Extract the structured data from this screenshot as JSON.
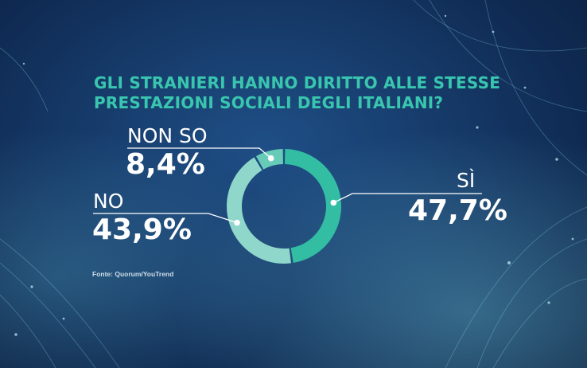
{
  "title_lines": [
    "GLI STRANIERI HANNO DIRITTO ALLE STESSE",
    "PRESTAZIONI SOCIALI DEGLI ITALIANI?"
  ],
  "source": "Fonte: Quorum/YouTrend",
  "colors": {
    "title": "#39c6ae",
    "si": "#33bea4",
    "no": "#8fd7cb",
    "nonso": "#67cbb8",
    "label_text": "#ffffff"
  },
  "chart_data": {
    "type": "pie",
    "variant": "donut",
    "title": "GLI STRANIERI HANNO DIRITTO ALLE STESSE PRESTAZIONI SOCIALI DEGLI ITALIANI?",
    "slices": [
      {
        "label": "SÌ",
        "value": 47.7,
        "display": "47,7%"
      },
      {
        "label": "NO",
        "value": 43.9,
        "display": "43,9%"
      },
      {
        "label": "NON SO",
        "value": 8.4,
        "display": "8,4%"
      }
    ],
    "legend": "none"
  }
}
